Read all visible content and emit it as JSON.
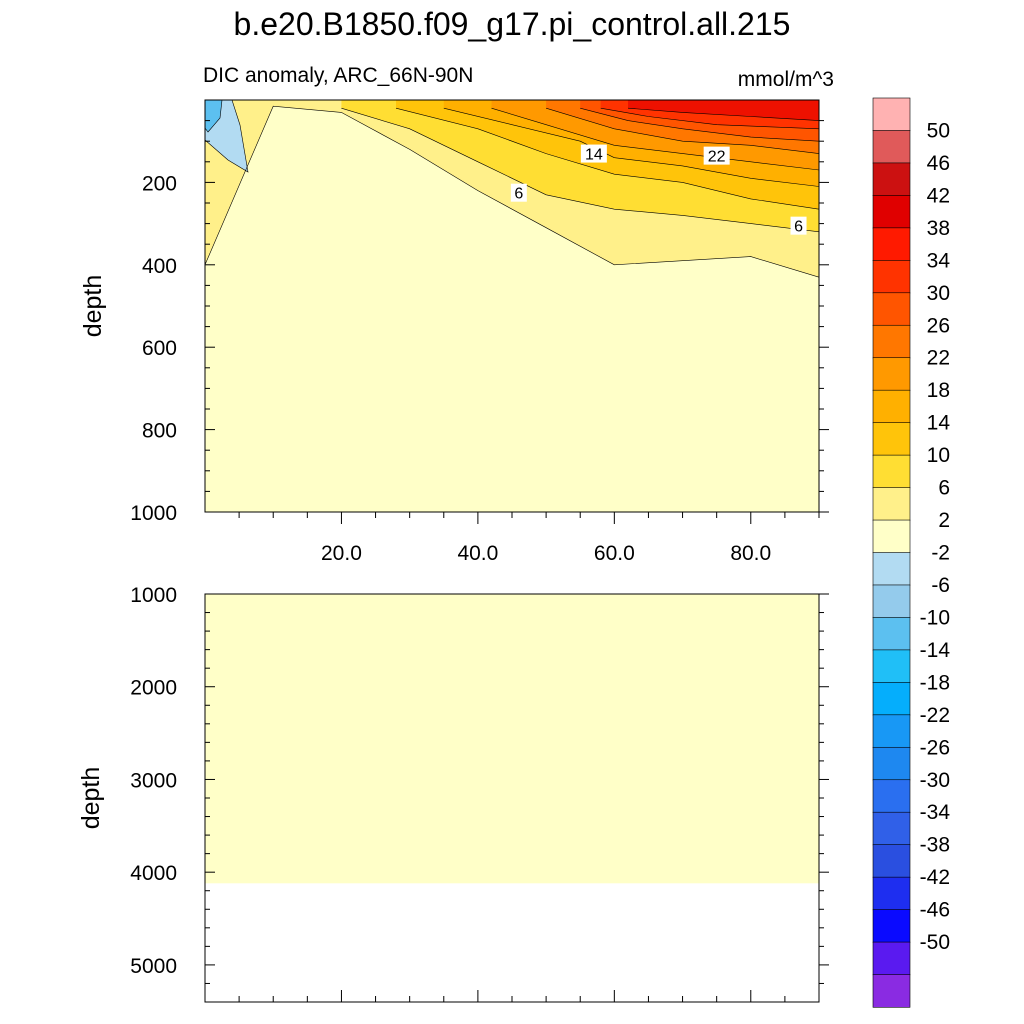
{
  "chart_data": {
    "type": "heatmap",
    "title": "b.e20.B1850.f09_g17.pi_control.all.215",
    "subtitle": "DIC anomaly, ARC_66N-90N",
    "units": "mmol/m^3",
    "xlabel": "",
    "ylabel": "depth",
    "xlim": [
      0,
      90
    ],
    "x_ticks": [
      "20.0",
      "40.0",
      "60.0",
      "80.0"
    ],
    "colorbar": {
      "labels": [
        "50",
        "46",
        "42",
        "38",
        "34",
        "30",
        "26",
        "22",
        "18",
        "14",
        "10",
        "6",
        "2",
        "-2",
        "-6",
        "-10",
        "-14",
        "-18",
        "-22",
        "-26",
        "-30",
        "-34",
        "-38",
        "-42",
        "-46",
        "-50"
      ],
      "colors": [
        "#ffb2b2",
        "#e05a5a",
        "#cc1111",
        "#e00000",
        "#ff1a00",
        "#ff3300",
        "#ff5500",
        "#ff7700",
        "#ff9900",
        "#ffb000",
        "#ffc40a",
        "#ffde33",
        "#fff08a",
        "#ffffc8",
        "#b2dbf2",
        "#94cbec",
        "#5cc0f0",
        "#20bff7",
        "#05aefc",
        "#1898f5",
        "#1e88f0",
        "#2a6ff0",
        "#3060e8",
        "#2a4fe0",
        "#1e2ef0",
        "#0a0aff",
        "#5a1af0",
        "#8a2be2"
      ]
    },
    "panels": [
      {
        "name": "upper",
        "ylim": [
          0,
          1000
        ],
        "y_ticks": [
          "200",
          "400",
          "600",
          "800",
          "1000"
        ],
        "contour_labels": [
          {
            "text": "14",
            "x": 57,
            "depth": 130
          },
          {
            "text": "22",
            "x": 75,
            "depth": 135
          },
          {
            "text": "6",
            "x": 46,
            "depth": 225
          },
          {
            "text": "6",
            "x": 87,
            "depth": 305
          }
        ],
        "contour_levels": [
          {
            "level": 2,
            "x": [
              0,
              10,
              20,
              30,
              40,
              50,
              60,
              70,
              80,
              90
            ],
            "depth": [
              400,
              15,
              30,
              120,
              220,
              310,
              400,
              390,
              380,
              430
            ]
          },
          {
            "level": 6,
            "x": [
              20,
              30,
              40,
              50,
              60,
              70,
              80,
              90
            ],
            "depth": [
              20,
              70,
              150,
              230,
              265,
              280,
              300,
              320
            ]
          },
          {
            "level": 10,
            "x": [
              28,
              40,
              50,
              60,
              70,
              80,
              90
            ],
            "depth": [
              20,
              70,
              130,
              180,
              200,
              240,
              265
            ]
          },
          {
            "level": 14,
            "x": [
              35,
              45,
              55,
              60,
              70,
              80,
              90
            ],
            "depth": [
              20,
              60,
              100,
              140,
              160,
              190,
              210
            ]
          },
          {
            "level": 18,
            "x": [
              42,
              50,
              60,
              70,
              80,
              90
            ],
            "depth": [
              20,
              60,
              110,
              130,
              150,
              170
            ]
          },
          {
            "level": 22,
            "x": [
              50,
              60,
              70,
              80,
              90
            ],
            "depth": [
              20,
              70,
              100,
              110,
              130
            ]
          },
          {
            "level": 26,
            "x": [
              55,
              62,
              70,
              80,
              90
            ],
            "depth": [
              20,
              50,
              70,
              90,
              100
            ]
          },
          {
            "level": 30,
            "x": [
              58,
              65,
              75,
              90
            ],
            "depth": [
              20,
              40,
              60,
              70
            ]
          },
          {
            "level": 34,
            "x": [
              62,
              70,
              80,
              90
            ],
            "depth": [
              20,
              30,
              40,
              50
            ]
          }
        ]
      },
      {
        "name": "lower",
        "ylim": [
          1000,
          5400
        ],
        "y_ticks": [
          "1000",
          "2000",
          "3000",
          "4000",
          "5000"
        ],
        "seafloor_depth": 4120,
        "fill_level": "-2 to 2"
      }
    ]
  }
}
